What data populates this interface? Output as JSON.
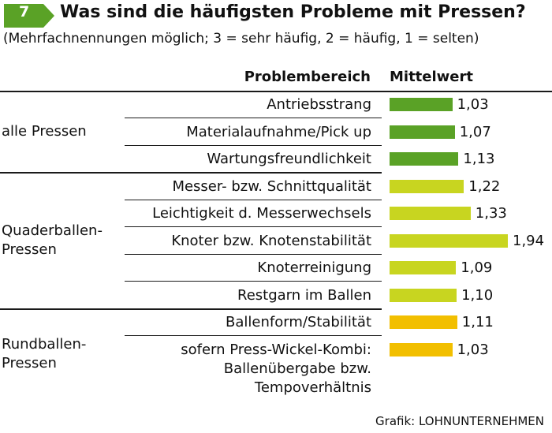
{
  "header": {
    "badge": "7",
    "title": "Was sind die häufigsten Probleme mit Pressen?",
    "subtitle": "(Mehrfachnennungen möglich; 3 = sehr häufig, 2 = häufig, 1 = selten)"
  },
  "columns": {
    "problem": "Problembereich",
    "value": "Mittelwert"
  },
  "colors": {
    "badge": "#5aa226",
    "group_1": "#5aa226",
    "group_2": "#c8d520",
    "group_3": "#f2bf00"
  },
  "chart_data": {
    "type": "bar",
    "orientation": "horizontal",
    "xlim": [
      0,
      2
    ],
    "groups": [
      {
        "name": "alle Pressen",
        "items": [
          {
            "label": "Antriebsstrang",
            "value": 1.03,
            "display": "1,03"
          },
          {
            "label": "Materialaufnahme/Pick up",
            "value": 1.07,
            "display": "1,07"
          },
          {
            "label": "Wartungsfreundlichkeit",
            "value": 1.13,
            "display": "1,13"
          }
        ]
      },
      {
        "name": "Quaderballen-\nPressen",
        "items": [
          {
            "label": "Messer- bzw. Schnittqualität",
            "value": 1.22,
            "display": "1,22"
          },
          {
            "label": "Leichtigkeit d. Messerwechsels",
            "value": 1.33,
            "display": "1,33"
          },
          {
            "label": "Knoter bzw. Knotenstabilität",
            "value": 1.94,
            "display": "1,94"
          },
          {
            "label": "Knoterreinigung",
            "value": 1.09,
            "display": "1,09"
          },
          {
            "label": "Restgarn im Ballen",
            "value": 1.1,
            "display": "1,10"
          }
        ]
      },
      {
        "name": "Rundballen-\nPressen",
        "items": [
          {
            "label": "Ballenform/Stabilität",
            "value": 1.11,
            "display": "1,11"
          },
          {
            "label": "sofern Press-Wickel-Kombi:\nBallenübergabe bzw.\nTempoverhältnis",
            "value": 1.03,
            "display": "1,03"
          }
        ]
      }
    ]
  },
  "source": "Grafik: LOHNUNTERNEHMEN"
}
